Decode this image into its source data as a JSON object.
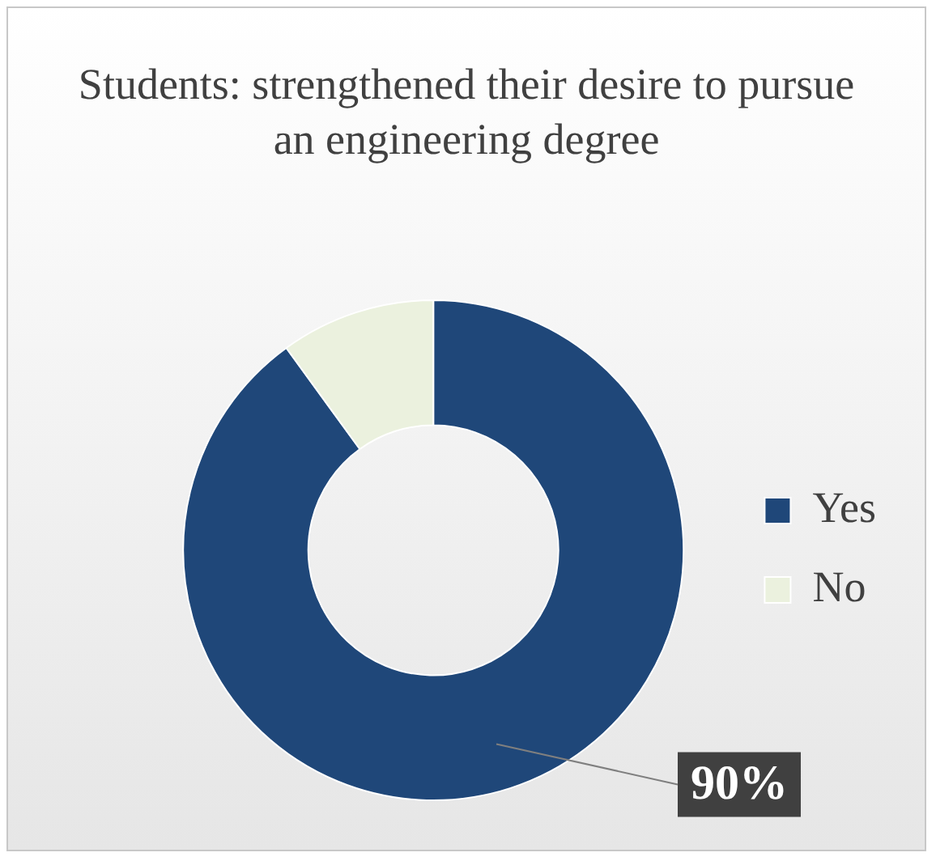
{
  "chart_data": {
    "type": "donut",
    "title": "Students: strengthened their desire to pursue an engineering degree",
    "categories": [
      "Yes",
      "No"
    ],
    "values": [
      90,
      10
    ],
    "colors": [
      "#1f4779",
      "#ebf1de"
    ],
    "value_labels": [
      "90%",
      null
    ],
    "legend": "right"
  }
}
